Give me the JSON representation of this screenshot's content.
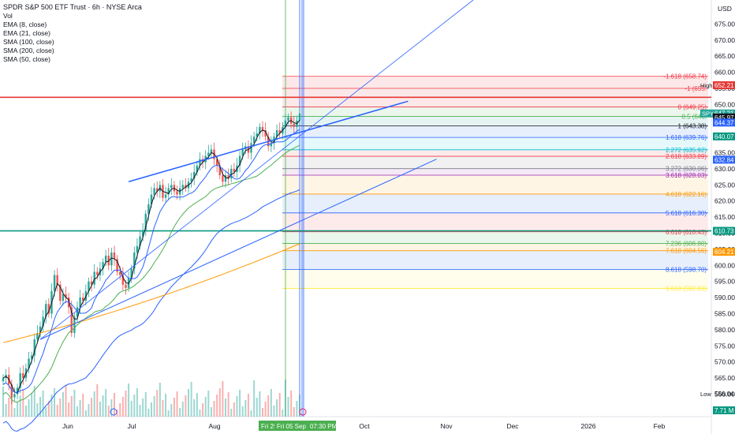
{
  "header": {
    "title": "SPDR S&P 500 ETF Trust · 6h · NYSE Arca",
    "indicators": [
      "Vol",
      "EMA (8, close)",
      "EMA (21, close)",
      "SMA (100, close)",
      "SMA (200, close)",
      "SMA (50, close)"
    ]
  },
  "axis": {
    "currency": "USD"
  },
  "colors": {
    "up": "#26a69a",
    "down": "#ef5350",
    "ema8": "#131722",
    "ema21": "#2962ff",
    "sma50": "#4caf50",
    "sma100": "#2962ff",
    "sma200": "#ff9800"
  },
  "chart_data": {
    "type": "candlestick",
    "symbol": "SPY",
    "ylim": [
      553,
      680
    ],
    "price_ticks": [
      "675.00",
      "670.00",
      "665.00",
      "660.00",
      "655.00",
      "650.00",
      "645.00",
      "640.00",
      "635.00",
      "630.00",
      "625.00",
      "620.00",
      "615.00",
      "610.00",
      "605.00",
      "600.00",
      "595.00",
      "590.00",
      "585.00",
      "580.00",
      "575.00",
      "570.00",
      "565.00",
      "560.00"
    ],
    "x_ticks": [
      "Jun",
      "Jul",
      "Aug",
      "Oct",
      "Nov",
      "Dec",
      "2026",
      "Feb"
    ],
    "x_highlight_labels": [
      "Fri 29",
      "Fri 05 Sep '25",
      "07:30 PM"
    ],
    "price_badges": [
      {
        "label": "High",
        "value": "652.21",
        "color": "#e53935",
        "kind": "high"
      },
      {
        "label": "",
        "value": "647.21",
        "color": "#26a69a",
        "symbol": "SPY"
      },
      {
        "label": "",
        "value": "645.97",
        "color": "#131722"
      },
      {
        "label": "",
        "value": "644.37",
        "color": "#2962ff"
      },
      {
        "label": "",
        "value": "640.07",
        "color": "#089981"
      },
      {
        "label": "",
        "value": "632.84",
        "color": "#2962ff"
      },
      {
        "label": "",
        "value": "610.73",
        "color": "#089981"
      },
      {
        "label": "",
        "value": "604.21",
        "color": "#ff9800"
      },
      {
        "label": "Low",
        "value": "556.04",
        "color": "#787b86",
        "kind": "low"
      },
      {
        "label": "",
        "value": "7.71 M",
        "color": "#089981",
        "kind": "volume"
      }
    ],
    "fib_levels": [
      {
        "label": "-1.618 (658.74)",
        "price": 658.74,
        "color": "#f23645"
      },
      {
        "label": "-1 (655.",
        "price": 655.0,
        "color": "#f23645"
      },
      {
        "label": "0 (649.25)",
        "price": 649.25,
        "color": "#f23645"
      },
      {
        "label": "0.5 (646.",
        "price": 646.3,
        "color": "#4caf50"
      },
      {
        "label": "1 (643.38)",
        "price": 643.38,
        "color": "#131722"
      },
      {
        "label": "1.618 (639.76)",
        "price": 639.76,
        "color": "#2962ff"
      },
      {
        "label": "2.272 (635.92)",
        "price": 635.92,
        "color": "#00bcd4"
      },
      {
        "label": "2.618 (633.89)",
        "price": 633.89,
        "color": "#f23645"
      },
      {
        "label": "3.272 (630.06)",
        "price": 630.06,
        "color": "#787b86"
      },
      {
        "label": "3.618 (628.03)",
        "price": 628.03,
        "color": "#9c27b0"
      },
      {
        "label": "4.618 (622.16)",
        "price": 622.16,
        "color": "#ff9800"
      },
      {
        "label": "5.618 (616.30)",
        "price": 616.3,
        "color": "#2962ff"
      },
      {
        "label": "6.618 (610.43)",
        "price": 610.43,
        "color": "#f23645"
      },
      {
        "label": "7.236 (606.80)",
        "price": 606.8,
        "color": "#4caf50"
      },
      {
        "label": "7.618 (604.56)",
        "price": 604.56,
        "color": "#ff9800"
      },
      {
        "label": "8.618 (598.70)",
        "price": 598.7,
        "color": "#2962ff"
      },
      {
        "label": "9.618 (592.83)",
        "price": 592.83,
        "color": "#ffeb3b"
      }
    ],
    "horizontal_lines": [
      {
        "price": 652.21,
        "color": "#e53935"
      },
      {
        "price": 610.73,
        "color": "#089981"
      }
    ],
    "trend_channel": {
      "upper_start": [
        44,
        626.0
      ],
      "upper_end": [
        142,
        651.0
      ],
      "lower_start": [
        13,
        577.0
      ],
      "lower_end": [
        152,
        633.0
      ],
      "ray_start": [
        13,
        577.0
      ],
      "ray_end": [
        152,
        633.0
      ]
    },
    "anchor": [
      63,
      24.0
    ],
    "closes": [
      565.0,
      566.0,
      563.0,
      559.0,
      560.0,
      562.0,
      566.5,
      565.0,
      568.0,
      571.0,
      572.0,
      577.0,
      579.0,
      581.0,
      584.0,
      588.0,
      585.0,
      592.0,
      597.0,
      594.0,
      589.0,
      591.0,
      590.0,
      587.0,
      579.0,
      584.0,
      587.0,
      590.0,
      589.0,
      592.0,
      595.0,
      594.0,
      598.0,
      597.0,
      599.0,
      601.0,
      603.0,
      600.0,
      604.0,
      602.0,
      598.0,
      597.0,
      594.0,
      593.0,
      596.0,
      599.0,
      604.0,
      606.0,
      609.0,
      611.0,
      616.0,
      619.0,
      622.0,
      624.0,
      623.0,
      625.0,
      621.0,
      622.0,
      624.0,
      625.0,
      623.0,
      622.0,
      624.0,
      625.0,
      624.0,
      626.0,
      627.0,
      629.0,
      631.0,
      633.0,
      632.0,
      634.0,
      635.0,
      636.0,
      633.0,
      631.0,
      628.0,
      626.0,
      628.0,
      627.0,
      630.0,
      629.0,
      631.0,
      634.0,
      636.0,
      637.0,
      635.0,
      638.0,
      640.0,
      641.0,
      643.0,
      642.0,
      640.0,
      637.0,
      638.0,
      640.0,
      642.0,
      641.0,
      643.0,
      645.0,
      646.0,
      644.0,
      643.0,
      645.0,
      647.21
    ]
  }
}
